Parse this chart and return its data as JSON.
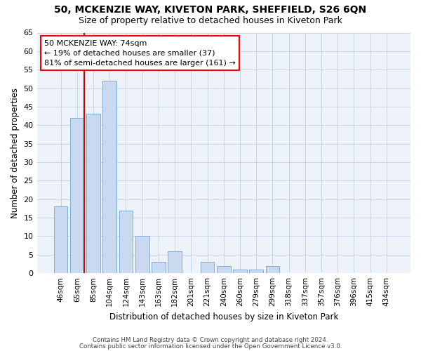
{
  "title": "50, MCKENZIE WAY, KIVETON PARK, SHEFFIELD, S26 6QN",
  "subtitle": "Size of property relative to detached houses in Kiveton Park",
  "xlabel": "Distribution of detached houses by size in Kiveton Park",
  "ylabel": "Number of detached properties",
  "categories": [
    "46sqm",
    "65sqm",
    "85sqm",
    "104sqm",
    "124sqm",
    "143sqm",
    "163sqm",
    "182sqm",
    "201sqm",
    "221sqm",
    "240sqm",
    "260sqm",
    "279sqm",
    "299sqm",
    "318sqm",
    "337sqm",
    "357sqm",
    "376sqm",
    "396sqm",
    "415sqm",
    "434sqm"
  ],
  "values": [
    18,
    42,
    43,
    52,
    17,
    10,
    3,
    6,
    0,
    3,
    2,
    1,
    1,
    2,
    0,
    0,
    0,
    0,
    0,
    0,
    0
  ],
  "bar_color": "#c9d9f0",
  "bar_edge_color": "#7bafd4",
  "grid_color": "#c8d4e8",
  "background_color": "#eef2f9",
  "annotation_text": "50 MCKENZIE WAY: 74sqm\n← 19% of detached houses are smaller (37)\n81% of semi-detached houses are larger (161) →",
  "annotation_box_color": "white",
  "annotation_box_edge_color": "red",
  "red_line_color": "#cc0000",
  "footer_line1": "Contains HM Land Registry data © Crown copyright and database right 2024.",
  "footer_line2": "Contains public sector information licensed under the Open Government Licence v3.0.",
  "ylim": [
    0,
    65
  ],
  "yticks": [
    0,
    5,
    10,
    15,
    20,
    25,
    30,
    35,
    40,
    45,
    50,
    55,
    60,
    65
  ],
  "title_fontsize": 10,
  "subtitle_fontsize": 9
}
